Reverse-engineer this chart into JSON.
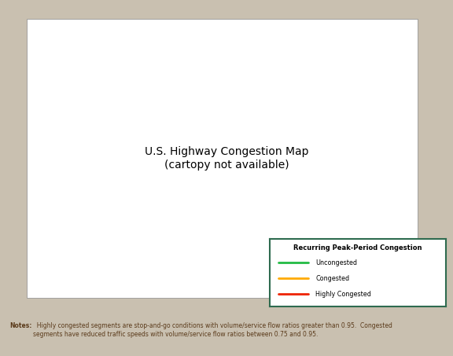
{
  "background_color": "#c9c0b0",
  "map_ocean_color": "#6aaa96",
  "us_fill": "#ffffff",
  "alaska_fill": "#ffffff",
  "hawaii_fill": "#ffffff",
  "uncongested_color": "#22bb44",
  "congested_color": "#ffaa00",
  "highly_congested_color": "#ee2200",
  "legend_title": "Recurring Peak-Period Congestion",
  "legend_items": [
    "Uncongested",
    "Congested",
    "Highly Congested"
  ],
  "legend_colors": [
    "#22bb44",
    "#ffaa00",
    "#ee2200"
  ],
  "notes_bold": "Notes:",
  "notes_text": "  Highly congested segments are stop-and-go conditions with volume/service flow ratios greater than 0.95.  Congested\nsegments have reduced traffic speeds with volume/service flow ratios between 0.75 and 0.95.",
  "notes_color": "#5a3a1a",
  "legend_border_color": "#2e6b4f",
  "inset_border_color": "#2e6b4f",
  "state_edge_color": "#aaaaaa",
  "map_edge_color": "#888888"
}
